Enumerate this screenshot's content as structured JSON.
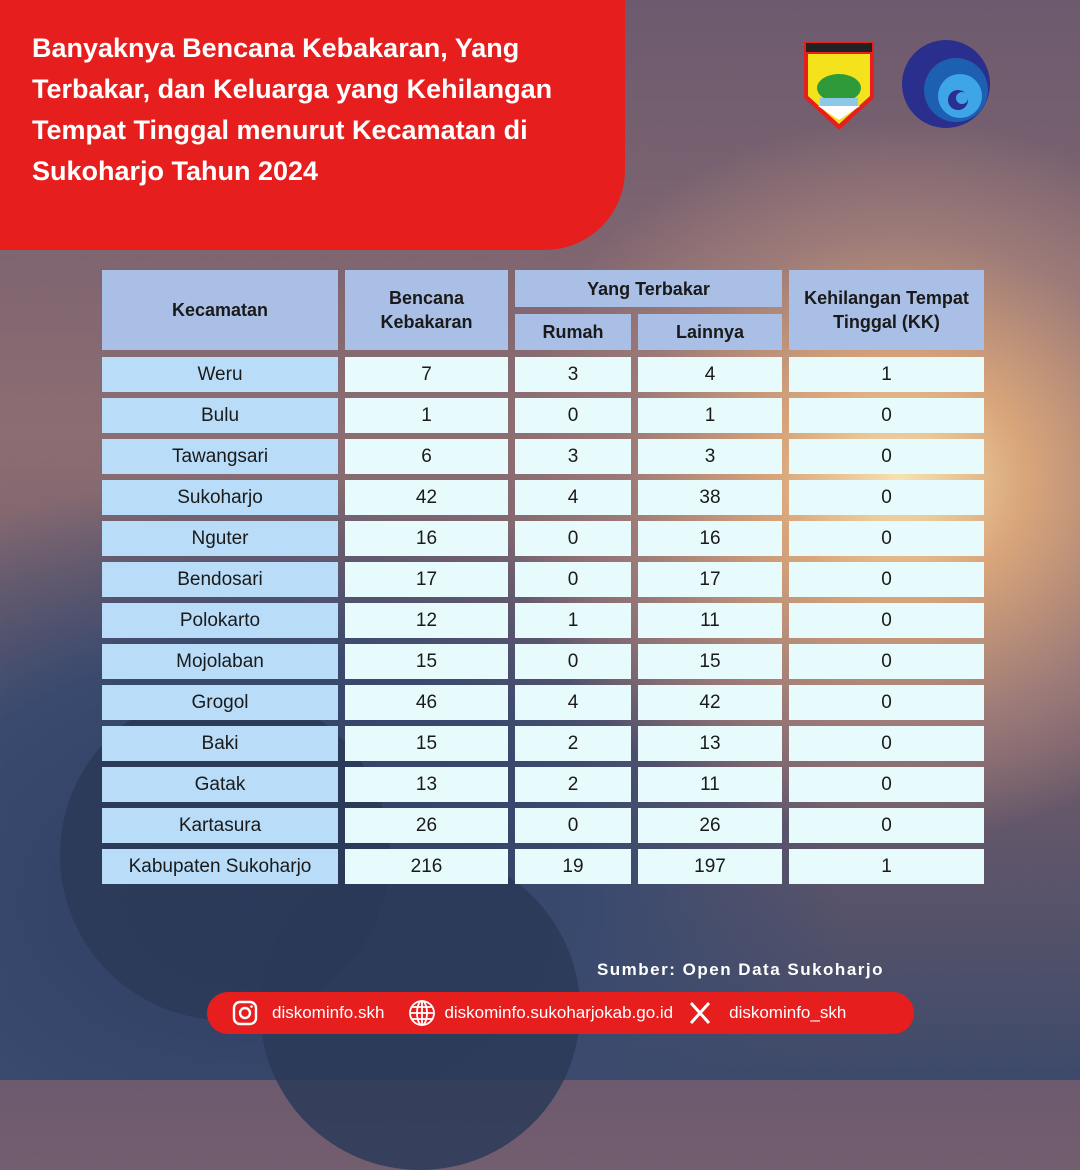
{
  "title": "Banyaknya Bencana Kebakaran, Yang Terbakar, dan Keluarga yang Kehilangan Tempat Tinggal menurut Kecamatan di Sukoharjo Tahun 2024",
  "logos": {
    "left": "KABUPATEN SUKOHARJO",
    "right": "kominfo-logo"
  },
  "colors": {
    "accent": "#e61e1e",
    "header": "#a9bfe6",
    "first_col": "#b9ddf8",
    "cell": "#e7fbfd"
  },
  "chart_data": {
    "type": "table",
    "headers": {
      "kecamatan": "Kecamatan",
      "bencana": "Bencana Kebakaran",
      "yang_terbakar": "Yang Terbakar",
      "rumah": "Rumah",
      "lainnya": "Lainnya",
      "kk": "Kehilangan Tempat Tinggal (KK)"
    },
    "rows": [
      [
        "Weru",
        "7",
        "3",
        "4",
        "1"
      ],
      [
        "Bulu",
        "1",
        "0",
        "1",
        "0"
      ],
      [
        "Tawangsari",
        "6",
        "3",
        "3",
        "0"
      ],
      [
        "Sukoharjo",
        "42",
        "4",
        "38",
        "0"
      ],
      [
        "Nguter",
        "16",
        "0",
        "16",
        "0"
      ],
      [
        "Bendosari",
        "17",
        "0",
        "17",
        "0"
      ],
      [
        "Polokarto",
        "12",
        "1",
        "11",
        "0"
      ],
      [
        "Mojolaban",
        "15",
        "0",
        "15",
        "0"
      ],
      [
        "Grogol",
        "46",
        "4",
        "42",
        "0"
      ],
      [
        "Baki",
        "15",
        "2",
        "13",
        "0"
      ],
      [
        "Gatak",
        "13",
        "2",
        "11",
        "0"
      ],
      [
        "Kartasura",
        "26",
        "0",
        "26",
        "0"
      ],
      [
        "Kabupaten Sukoharjo",
        "216",
        "19",
        "197",
        "1"
      ]
    ]
  },
  "source": "Sumber: Open Data Sukoharjo",
  "footer": {
    "instagram": "diskominfo.skh",
    "website": "diskominfo.sukoharjokab.go.id",
    "x": "diskominfo_skh"
  }
}
